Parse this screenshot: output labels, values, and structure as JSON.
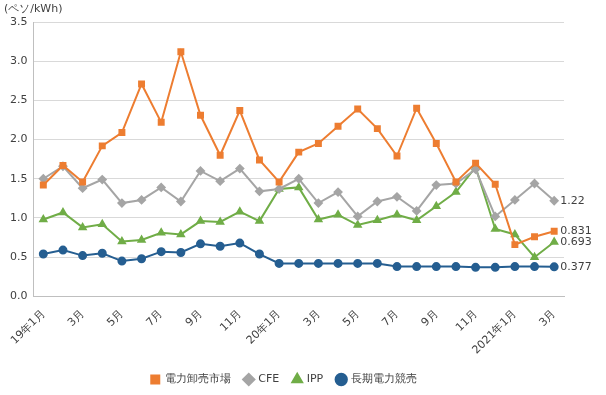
{
  "chart_data": {
    "type": "line",
    "y_label": "(ペソ/kWh)",
    "categories": [
      "19年1月",
      null,
      "3月",
      null,
      "5月",
      null,
      "7月",
      null,
      "9月",
      null,
      "11月",
      null,
      "20年1月",
      null,
      "3月",
      null,
      "5月",
      null,
      "7月",
      null,
      "9月",
      null,
      "11月",
      null,
      "2021年1月",
      null,
      "3月"
    ],
    "ylim": [
      0,
      3.5
    ],
    "yticks": [
      {
        "value": 0,
        "label": "0.0"
      },
      {
        "value": 0.5,
        "label": "0.5"
      },
      {
        "value": 1,
        "label": "1.0"
      },
      {
        "value": 1.5,
        "label": "1.5"
      },
      {
        "value": 2,
        "label": "2.0"
      },
      {
        "value": 2.5,
        "label": "2.5"
      },
      {
        "value": 3,
        "label": "3.0"
      },
      {
        "value": 3.5,
        "label": "3.5"
      }
    ],
    "grid": "y",
    "legend": "bottom",
    "series": [
      {
        "name": "電力卸売市場",
        "color": "#ed7d31",
        "marker": "square",
        "values": [
          1.42,
          1.67,
          1.46,
          1.92,
          2.09,
          2.71,
          2.22,
          3.12,
          2.31,
          1.8,
          2.37,
          1.74,
          1.46,
          1.84,
          1.95,
          2.17,
          2.39,
          2.14,
          1.79,
          2.4,
          1.95,
          1.46,
          1.7,
          1.43,
          0.66,
          0.76,
          0.831
        ],
        "value_labels": [
          null,
          null,
          null,
          null,
          null,
          null,
          null,
          null,
          null,
          null,
          null,
          null,
          null,
          null,
          null,
          null,
          null,
          null,
          null,
          null,
          null,
          null,
          null,
          null,
          null,
          null,
          "0.831"
        ]
      },
      {
        "name": "CFE",
        "color": "#a5a5a5",
        "marker": "diamond",
        "values": [
          1.5,
          1.66,
          1.38,
          1.49,
          1.19,
          1.23,
          1.39,
          1.21,
          1.6,
          1.47,
          1.63,
          1.34,
          1.37,
          1.5,
          1.19,
          1.33,
          1.02,
          1.21,
          1.27,
          1.09,
          1.42,
          1.44,
          1.62,
          1.02,
          1.23,
          1.44,
          1.22
        ],
        "value_labels": [
          null,
          null,
          null,
          null,
          null,
          null,
          null,
          null,
          null,
          null,
          null,
          null,
          null,
          null,
          null,
          null,
          null,
          null,
          null,
          null,
          null,
          null,
          null,
          null,
          null,
          null,
          "1.22"
        ]
      },
      {
        "name": "IPP",
        "color": "#70ad47",
        "marker": "triangle",
        "values": [
          0.98,
          1.07,
          0.88,
          0.92,
          0.7,
          0.72,
          0.81,
          0.79,
          0.96,
          0.95,
          1.08,
          0.96,
          1.37,
          1.39,
          0.98,
          1.04,
          0.91,
          0.97,
          1.04,
          0.97,
          1.15,
          1.33,
          1.65,
          0.86,
          0.79,
          0.5,
          0.693
        ],
        "value_labels": [
          null,
          null,
          null,
          null,
          null,
          null,
          null,
          null,
          null,
          null,
          null,
          null,
          null,
          null,
          null,
          null,
          null,
          null,
          null,
          null,
          null,
          null,
          null,
          null,
          null,
          null,
          "0.693"
        ]
      },
      {
        "name": "長期電力競売",
        "color": "#255e91",
        "marker": "circle",
        "values": [
          0.54,
          0.59,
          0.52,
          0.55,
          0.45,
          0.48,
          0.57,
          0.56,
          0.67,
          0.64,
          0.68,
          0.54,
          0.42,
          0.42,
          0.42,
          0.42,
          0.42,
          0.42,
          0.38,
          0.38,
          0.38,
          0.38,
          0.37,
          0.37,
          0.38,
          0.38,
          0.377
        ],
        "value_labels": [
          null,
          null,
          null,
          null,
          null,
          null,
          null,
          null,
          null,
          null,
          null,
          null,
          null,
          null,
          null,
          null,
          null,
          null,
          null,
          null,
          null,
          null,
          null,
          null,
          null,
          null,
          "0.377"
        ]
      }
    ]
  }
}
